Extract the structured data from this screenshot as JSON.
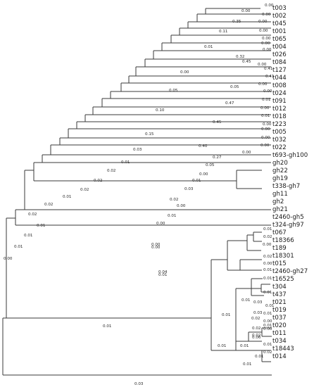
{
  "figure": {
    "type": "phylogenetic-tree",
    "leaves": [
      "t003",
      "t002",
      "t045",
      "t001",
      "t065",
      "t004",
      "t026",
      "t084",
      "t127",
      "t044",
      "t008",
      "t024",
      "t091",
      "t012",
      "t018",
      "t223",
      "t005",
      "t032",
      "t022",
      "t693-gh100",
      "gh20",
      "gh22",
      "gh19",
      "t338-gh7",
      "gh11",
      "gh2",
      "gh21",
      "t2460-gh5",
      "t324-gh97",
      "t067",
      "t18366",
      "t189",
      "t18301",
      "t015",
      "t2460-gh27",
      "t16525",
      "t304",
      "t437",
      "t021",
      "t019",
      "t037",
      "t020",
      "t011",
      "t034",
      "t18443",
      "t014"
    ],
    "branch_labels": [
      {
        "text": "0.00",
        "bind": "n_0"
      },
      {
        "text": "0.00",
        "bind": "n_1"
      },
      {
        "text": "0.00",
        "bind": "n_2"
      },
      {
        "text": "0.35",
        "bind": "n_3"
      },
      {
        "text": "0.00",
        "bind": "n_4"
      },
      {
        "text": "0.11",
        "bind": "n_5"
      },
      {
        "text": "0.00",
        "bind": "n_6"
      },
      {
        "text": "0.00",
        "bind": "n_7"
      },
      {
        "text": "0.00",
        "bind": "n_8"
      },
      {
        "text": "0.32",
        "bind": "n_9"
      },
      {
        "text": "0.45",
        "bind": "n_10"
      },
      {
        "text": "0.00",
        "bind": "n_11"
      },
      {
        "text": "0.01",
        "bind": "n_12"
      },
      {
        "text": "0.41",
        "bind": "n_13"
      },
      {
        "text": "0.00",
        "bind": "n_14"
      },
      {
        "text": "0.41",
        "bind": "n_15"
      },
      {
        "text": "0.00",
        "bind": "n_16"
      },
      {
        "text": "0.05",
        "bind": "n_17"
      },
      {
        "text": "0.00",
        "bind": "n_18"
      },
      {
        "text": "0.00",
        "bind": "n_19"
      },
      {
        "text": "0.01",
        "bind": "n_20"
      },
      {
        "text": "0.47",
        "bind": "n_21"
      },
      {
        "text": "0.05",
        "bind": "n_22"
      },
      {
        "text": "0.00",
        "bind": "n_23"
      },
      {
        "text": "0.01",
        "bind": "n_24"
      },
      {
        "text": "0.10",
        "bind": "n_25"
      },
      {
        "text": "0.45",
        "bind": "n_26"
      },
      {
        "text": "0.00",
        "bind": "n_27"
      },
      {
        "text": "0.00",
        "bind": "n_28"
      },
      {
        "text": "0.00",
        "bind": "n_29"
      },
      {
        "text": "0.00",
        "bind": "n_30"
      },
      {
        "text": "0.40",
        "bind": "n_31"
      },
      {
        "text": "0.15",
        "bind": "n_32"
      },
      {
        "text": "0.00",
        "bind": "n_33"
      },
      {
        "text": "0.27",
        "bind": "n_34"
      },
      {
        "text": "0.03",
        "bind": "n_35"
      },
      {
        "text": "0.05",
        "bind": "n_36"
      },
      {
        "text": "0.01",
        "bind": "n_37"
      },
      {
        "text": "0.00",
        "bind": "n_38"
      },
      {
        "text": "0.02",
        "bind": "n_39"
      },
      {
        "text": "0.01",
        "bind": "n_40"
      },
      {
        "text": "0.02",
        "bind": "n_41"
      },
      {
        "text": "0.03",
        "bind": "n_42"
      },
      {
        "text": "0.02",
        "bind": "n_43"
      },
      {
        "text": "0.01",
        "bind": "n_44"
      },
      {
        "text": "0.02",
        "bind": "n_45"
      },
      {
        "text": "0.00",
        "bind": "n_46"
      },
      {
        "text": "0.02",
        "bind": "n_47"
      },
      {
        "text": "0.01",
        "bind": "n_48"
      },
      {
        "text": "0.02",
        "bind": "n_49"
      },
      {
        "text": "0.00",
        "bind": "n_50"
      },
      {
        "text": "0.01",
        "bind": "n_51"
      },
      {
        "text": "0.01",
        "bind": "n_52"
      },
      {
        "text": "0.02",
        "bind": "n_53"
      },
      {
        "text": "0.00",
        "bind": "n_54"
      },
      {
        "text": "0.00",
        "bind": "n_55"
      },
      {
        "text": "0.01",
        "bind": "n_56"
      },
      {
        "text": "0.00",
        "bind": "n_57"
      },
      {
        "text": "0.02",
        "bind": "n_58"
      },
      {
        "text": "0.00",
        "bind": "n_59"
      },
      {
        "text": "0.01",
        "bind": "n_60"
      },
      {
        "text": "0.01",
        "bind": "n_61"
      },
      {
        "text": "0.01",
        "bind": "n_62"
      },
      {
        "text": "0.04",
        "bind": "n_63"
      },
      {
        "text": "0.00",
        "bind": "n_64"
      },
      {
        "text": "0.01",
        "bind": "n_65"
      },
      {
        "text": "0.01",
        "bind": "n_66"
      },
      {
        "text": "0.03",
        "bind": "n_67"
      },
      {
        "text": "0.01",
        "bind": "n_68"
      },
      {
        "text": "0.01",
        "bind": "n_69"
      },
      {
        "text": "0.03",
        "bind": "n_70"
      },
      {
        "text": "0.01",
        "bind": "n_71"
      },
      {
        "text": "0.01",
        "bind": "n_72"
      },
      {
        "text": "0.01",
        "bind": "n_73"
      },
      {
        "text": "0.02",
        "bind": "n_74"
      },
      {
        "text": "0.00",
        "bind": "n_75"
      },
      {
        "text": "0.01",
        "bind": "n_76"
      },
      {
        "text": "0.00",
        "bind": "n_77"
      },
      {
        "text": "0.02",
        "bind": "n_78"
      },
      {
        "text": "0.02",
        "bind": "n_79"
      },
      {
        "text": "0.06",
        "bind": "n_80"
      },
      {
        "text": "0.01",
        "bind": "n_81"
      },
      {
        "text": "0.01",
        "bind": "n_82"
      },
      {
        "text": "0.01",
        "bind": "n_83"
      },
      {
        "text": "0.02",
        "bind": "n_84"
      },
      {
        "text": "0.01",
        "bind": "n_85"
      },
      {
        "text": "0.01",
        "bind": "n_86"
      },
      {
        "text": "0.03",
        "bind": "n_87"
      }
    ],
    "colors": {
      "line": "#3a3a3a",
      "text": "#1a1a1a",
      "watermark": "#e8eef6"
    }
  }
}
